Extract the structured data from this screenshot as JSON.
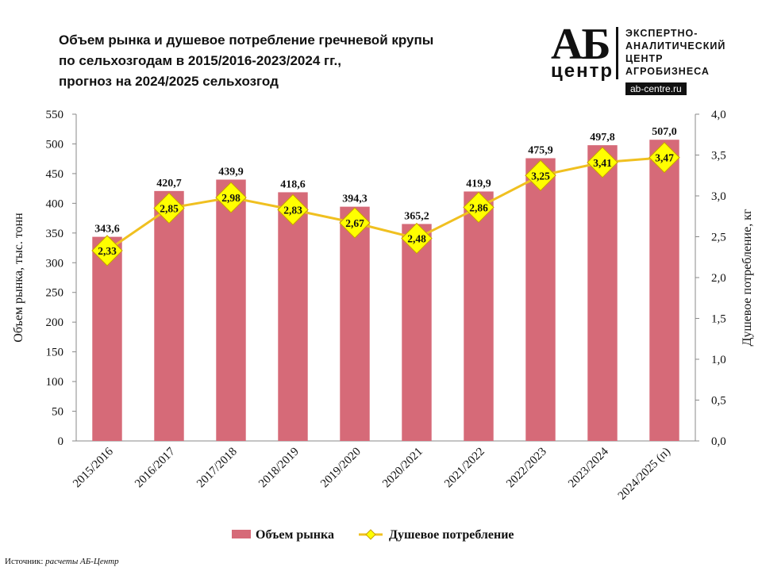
{
  "title_lines": [
    "Объем рынка и душевое потребление гречневой крупы",
    "по сельхозгодам в 2015/2016-2023/2024 гг.,",
    "прогноз на 2024/2025 сельхозгод"
  ],
  "logo": {
    "ab": "АБ",
    "center": "центр",
    "lines": [
      "ЭКСПЕРТНО-",
      "АНАЛИТИЧЕСКИЙ",
      "ЦЕНТР",
      "АГРОБИЗНЕСА"
    ],
    "url": "ab-centre.ru"
  },
  "source": {
    "label": "Источник:",
    "value": "расчеты АБ-Центр"
  },
  "colors": {
    "bar": "#d66a78",
    "line": "#f0c020",
    "marker_fill": "#ffff00",
    "marker_stroke": "#c8a000"
  },
  "chart_data": {
    "type": "bar",
    "categories": [
      "2015/2016",
      "2016/2017",
      "2017/2018",
      "2018/2019",
      "2019/2020",
      "2020/2021",
      "2021/2022",
      "2022/2023",
      "2023/2024",
      "2024/2025 (п)"
    ],
    "series": [
      {
        "name": "Объем рынка",
        "type": "bar",
        "axis": "left",
        "values": [
          343.6,
          420.7,
          439.9,
          418.6,
          394.3,
          365.2,
          419.9,
          475.9,
          497.8,
          507.0
        ],
        "labels": [
          "343,6",
          "420,7",
          "439,9",
          "418,6",
          "394,3",
          "365,2",
          "419,9",
          "475,9",
          "497,8",
          "507,0"
        ]
      },
      {
        "name": "Душевое потребление",
        "type": "line",
        "axis": "right",
        "values": [
          2.33,
          2.85,
          2.98,
          2.83,
          2.67,
          2.48,
          2.86,
          3.25,
          3.41,
          3.47
        ],
        "labels": [
          "2,33",
          "2,85",
          "2,98",
          "2,83",
          "2,67",
          "2,48",
          "2,86",
          "3,25",
          "3,41",
          "3,47"
        ]
      }
    ],
    "ylabel_left": "Объем рынка, тыс. тонн",
    "ylabel_right": "Душевое потребление, кг",
    "ylim_left": [
      0,
      550
    ],
    "ylim_right": [
      0,
      4
    ],
    "yticks_left": [
      "0",
      "50",
      "100",
      "150",
      "200",
      "250",
      "300",
      "350",
      "400",
      "450",
      "500",
      "550"
    ],
    "yticks_right": [
      "0,0",
      "0,5",
      "1,0",
      "1,5",
      "2,0",
      "2,5",
      "3,0",
      "3,5",
      "4,0"
    ],
    "grid": false,
    "legend": "bottom"
  }
}
